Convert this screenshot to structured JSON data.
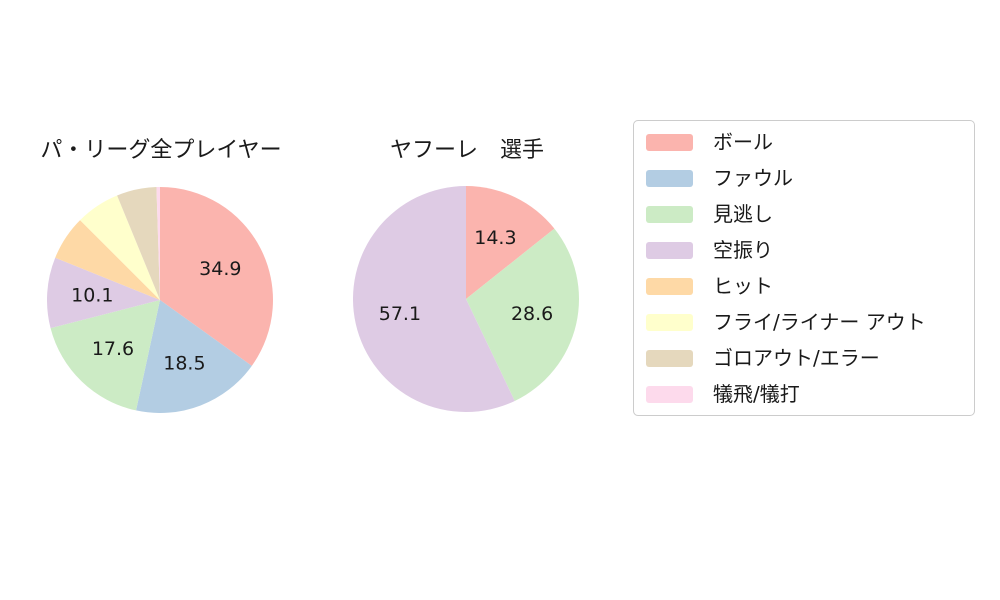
{
  "figure": {
    "background": "#ffffff",
    "text_color": "#1a1a1a"
  },
  "legend": {
    "position": "right",
    "background": "#ffffff",
    "border_color": "#cccccc",
    "items": [
      {
        "label": "ボール",
        "color": "#fbb4ae"
      },
      {
        "label": "ファウル",
        "color": "#b3cde3"
      },
      {
        "label": "見逃し",
        "color": "#ccebc5"
      },
      {
        "label": "空振り",
        "color": "#decbe4"
      },
      {
        "label": "ヒット",
        "color": "#fed9a6"
      },
      {
        "label": "フライ/ライナー アウト",
        "color": "#ffffcc"
      },
      {
        "label": "ゴロアウト/エラー",
        "color": "#e5d8bd"
      },
      {
        "label": "犠飛/犠打",
        "color": "#fddaec"
      }
    ]
  },
  "chart_data": [
    {
      "type": "pie",
      "title": "パ・リーグ全プレイヤー",
      "unit": "percent",
      "start_angle": "top",
      "direction": "clockwise",
      "label_distance": 0.6,
      "label_min_pct": 10,
      "slices": [
        {
          "label": "ボール",
          "value": 34.9,
          "display": "34.9",
          "color": "#fbb4ae"
        },
        {
          "label": "ファウル",
          "value": 18.5,
          "display": "18.5",
          "color": "#b3cde3"
        },
        {
          "label": "見逃し",
          "value": 17.6,
          "display": "17.6",
          "color": "#ccebc5"
        },
        {
          "label": "空振り",
          "value": 10.1,
          "display": "10.1",
          "color": "#decbe4"
        },
        {
          "label": "ヒット",
          "value": 6.4,
          "display": "",
          "color": "#fed9a6"
        },
        {
          "label": "フライ/ライナー アウト",
          "value": 6.3,
          "display": "",
          "color": "#ffffcc"
        },
        {
          "label": "ゴロアウト/エラー",
          "value": 5.7,
          "display": "",
          "color": "#e5d8bd"
        },
        {
          "label": "犠飛/犠打",
          "value": 0.5,
          "display": "",
          "color": "#fddaec"
        }
      ]
    },
    {
      "type": "pie",
      "title": "ヤフーレ　選手",
      "unit": "percent",
      "start_angle": "top",
      "direction": "clockwise",
      "label_distance": 0.6,
      "slices": [
        {
          "label": "ボール",
          "value": 14.3,
          "display": "14.3",
          "color": "#fbb4ae"
        },
        {
          "label": "見逃し",
          "value": 28.6,
          "display": "28.6",
          "color": "#ccebc5"
        },
        {
          "label": "空振り",
          "value": 57.1,
          "display": "57.1",
          "color": "#decbe4"
        }
      ]
    }
  ]
}
